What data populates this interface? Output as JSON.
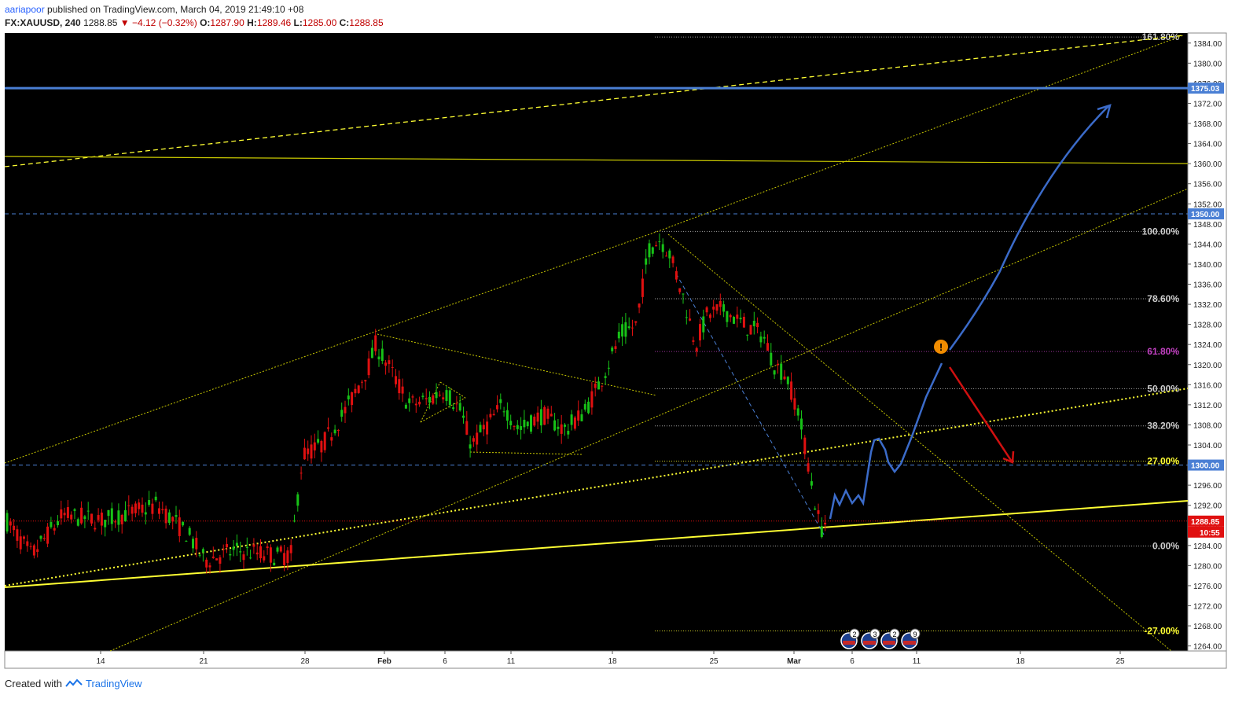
{
  "header": {
    "author": "aariapoor",
    "published": "published on TradingView.com, March 04, 2019 21:49:10 +08",
    "symbol": "FX:XAUUSD, 240",
    "last": "1288.85",
    "change": "▼ −4.12 (−0.32%)",
    "o_label": "O:",
    "o_value": "1287.90",
    "h_label": "H:",
    "h_value": "1289.46",
    "l_label": "L:",
    "l_value": "1285.00",
    "c_label": "C:",
    "c_value": "1288.85"
  },
  "footer": {
    "created_with": "Created with",
    "brand": "TradingView"
  },
  "colors": {
    "background": "#000000",
    "bull": "#17c217",
    "bear": "#e01010",
    "channel": "#c8c800",
    "support": "#ffff33",
    "blue_level": "#4a7fd4",
    "projection_blue": "#3b6bc9",
    "projection_red": "#d01010",
    "fib_pink": "#c040c0",
    "price_tag_red": "#e01010",
    "alert_orange": "#f08c00"
  },
  "chart_data": {
    "type": "candlestick",
    "symbol": "FX:XAUUSD",
    "timeframe": "240",
    "ylim": [
      1263,
      1386
    ],
    "grid": false,
    "y_ticks": [
      1264,
      1268,
      1272,
      1276,
      1280,
      1284,
      1288,
      1292,
      1296,
      1300,
      1304,
      1308,
      1312,
      1316,
      1320,
      1324,
      1328,
      1332,
      1336,
      1340,
      1344,
      1348,
      1352,
      1356,
      1360,
      1364,
      1368,
      1372,
      1376,
      1380,
      1384
    ],
    "y_tick_labels": [
      "1264.00",
      "1268.00",
      "1272.00",
      "1276.00",
      "1280.00",
      "1284.00",
      "1288.00",
      "1292.00",
      "1296.00",
      "1300.00",
      "1304.00",
      "1308.00",
      "1312.00",
      "1316.00",
      "1320.00",
      "1324.00",
      "1328.00",
      "1332.00",
      "1336.00",
      "1340.00",
      "1344.00",
      "1348.00",
      "1352.00",
      "1356.00",
      "1360.00",
      "1364.00",
      "1368.00",
      "1372.00",
      "1376.00",
      "1380.00",
      "1384.00"
    ],
    "x_tick_labels": [
      "14",
      "21",
      "28",
      "Feb",
      "6",
      "11",
      "18",
      "25",
      "Mar",
      "6",
      "11",
      "18",
      "25"
    ],
    "x_tick_bold": [
      "Feb",
      "Mar"
    ],
    "price_tags": [
      {
        "label": "1375.03",
        "value": 1375.03,
        "color": "#4a7fd4"
      },
      {
        "label": "1350.00",
        "value": 1350.0,
        "color": "#4a7fd4"
      },
      {
        "label": "1300.00",
        "value": 1300.0,
        "color": "#4a7fd4"
      },
      {
        "label": "1288.85",
        "value": 1288.85,
        "color": "#e01010"
      }
    ],
    "countdown": "10:55",
    "fib_levels": [
      {
        "label": "161.80%",
        "value": 1385.2,
        "color": "#cccccc"
      },
      {
        "label": "100.00%",
        "value": 1346.5,
        "color": "#cccccc"
      },
      {
        "label": "78.60%",
        "value": 1333.1,
        "color": "#cccccc"
      },
      {
        "label": "61.80%",
        "value": 1322.6,
        "color": "#c040c0"
      },
      {
        "label": "50.00%",
        "value": 1315.2,
        "color": "#cccccc"
      },
      {
        "label": "38.20%",
        "value": 1307.8,
        "color": "#cccccc"
      },
      {
        "label": "27.00%",
        "value": 1300.8,
        "color": "#ffff33"
      },
      {
        "label": "0.00%",
        "value": 1283.9,
        "color": "#cccccc"
      },
      {
        "label": "-27.00%",
        "value": 1267.0,
        "color": "#ffff33"
      }
    ],
    "horizontal_levels": [
      1375.03,
      1350.0,
      1300.0,
      1288.85
    ],
    "candles": [],
    "projection": "bullish path to ~1372 with bearish alternative to ~1301",
    "event_badges": [
      "2",
      "3",
      "2",
      "9"
    ]
  }
}
